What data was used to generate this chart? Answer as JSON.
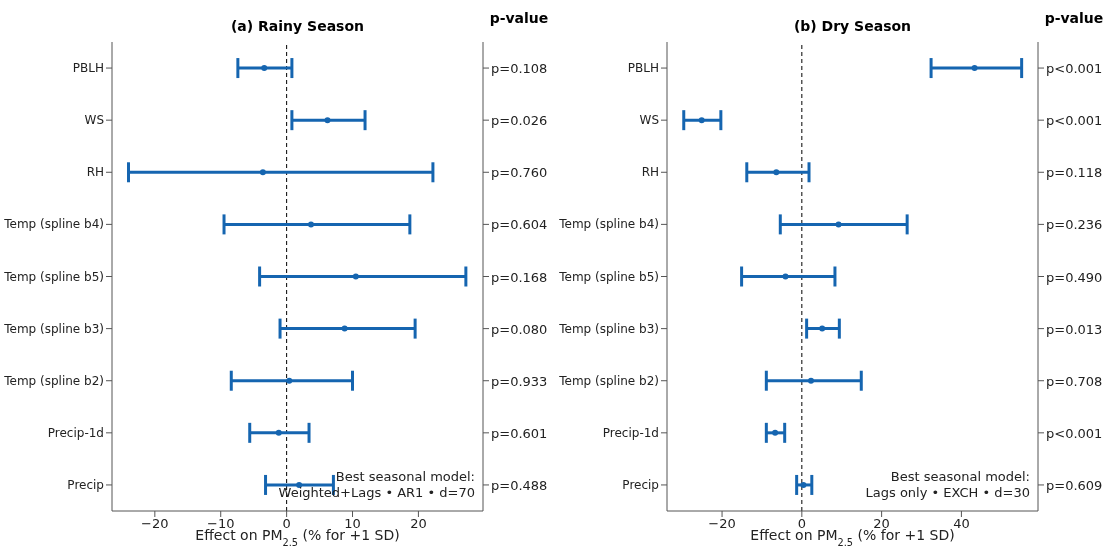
{
  "chart_data": [
    {
      "type": "scatter",
      "orientation": "horizontal",
      "title": "(a) Rainy Season",
      "xlabel": "Effect on PM$_{2.5}$ (% for +1 SD)",
      "y2label": "p-value",
      "categories": [
        "PBLH",
        "WS",
        "RH",
        "Temp (spline b4)",
        "Temp (spline b5)",
        "Temp (spline b3)",
        "Temp (spline b2)",
        "Precip-1d",
        "Precip"
      ],
      "y2_categories": [
        "p=0.108",
        "p=0.026",
        "p=0.760",
        "p=0.604",
        "p=0.168",
        "p=0.080",
        "p=0.933",
        "p=0.601",
        "p=0.488"
      ],
      "values": [
        -3.4,
        6.2,
        -3.6,
        3.7,
        10.5,
        8.8,
        0.4,
        -1.2,
        1.9
      ],
      "errors": [
        [
          -7.4,
          0.8
        ],
        [
          0.8,
          11.9
        ],
        [
          -24.0,
          22.2
        ],
        [
          -9.5,
          18.7
        ],
        [
          -4.1,
          27.2
        ],
        [
          -1.0,
          19.5
        ],
        [
          -8.4,
          10.0
        ],
        [
          -5.6,
          3.4
        ],
        [
          -3.2,
          7.1
        ]
      ],
      "color": "#1565b0",
      "marker": "circle",
      "xlim": [
        -26.5,
        29.8
      ],
      "xticks": [
        -20,
        -10,
        0,
        10,
        20
      ],
      "ref_lines": [
        {
          "axis": "x",
          "value": 0,
          "color": "#000000",
          "line_style": "dashed"
        }
      ],
      "annotations": [
        "Best seasonal model:\nWeighted+Lags • AR1 • d=70"
      ]
    },
    {
      "type": "scatter",
      "orientation": "horizontal",
      "title": "(b) Dry Season",
      "xlabel": "Effect on PM$_{2.5}$ (% for +1 SD)",
      "y2label": "p-value",
      "categories": [
        "PBLH",
        "WS",
        "RH",
        "Temp (spline b4)",
        "Temp (spline b5)",
        "Temp (spline b3)",
        "Temp (spline b2)",
        "Precip-1d",
        "Precip"
      ],
      "y2_categories": [
        "p<0.001",
        "p<0.001",
        "p=0.118",
        "p=0.236",
        "p=0.490",
        "p=0.013",
        "p=0.708",
        "p<0.001",
        "p=0.609"
      ],
      "values": [
        43.3,
        -25.1,
        -6.4,
        9.2,
        -4.1,
        5.1,
        2.3,
        -6.7,
        0.4
      ],
      "errors": [
        [
          32.4,
          55.1
        ],
        [
          -29.6,
          -20.3
        ],
        [
          -13.8,
          1.8
        ],
        [
          -5.4,
          26.4
        ],
        [
          -15.1,
          8.3
        ],
        [
          1.2,
          9.4
        ],
        [
          -8.9,
          14.9
        ],
        [
          -8.9,
          -4.3
        ],
        [
          -1.3,
          2.5
        ]
      ],
      "color": "#1565b0",
      "marker": "circle",
      "xlim": [
        -33.8,
        59.2
      ],
      "xticks": [
        -20,
        0,
        20,
        40
      ],
      "ref_lines": [
        {
          "axis": "x",
          "value": 0,
          "color": "#000000",
          "line_style": "dashed"
        }
      ],
      "annotations": [
        "Best seasonal model:\nLags only • EXCH • d=30"
      ]
    }
  ]
}
